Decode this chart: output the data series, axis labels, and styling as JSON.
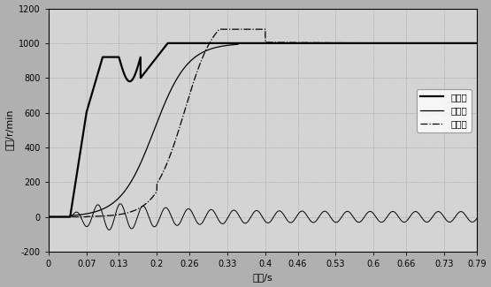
{
  "title": "",
  "xlabel": "时间/s",
  "ylabel": "转速/r/min",
  "xlim": [
    0,
    0.79
  ],
  "ylim": [
    -200,
    1200
  ],
  "xticks": [
    0,
    0.07,
    0.13,
    0.2,
    0.26,
    0.33,
    0.4,
    0.46,
    0.53,
    0.6,
    0.66,
    0.73,
    0.79
  ],
  "yticks": [
    -200,
    0,
    200,
    400,
    600,
    800,
    1000,
    1200
  ],
  "legend_labels": [
    "叠片式",
    "复合齿",
    "实心体"
  ],
  "figsize": [
    5.55,
    3.25
  ],
  "dpi": 100,
  "bg_color": "#c8c8c8",
  "ax_color": "#d8d8d8"
}
